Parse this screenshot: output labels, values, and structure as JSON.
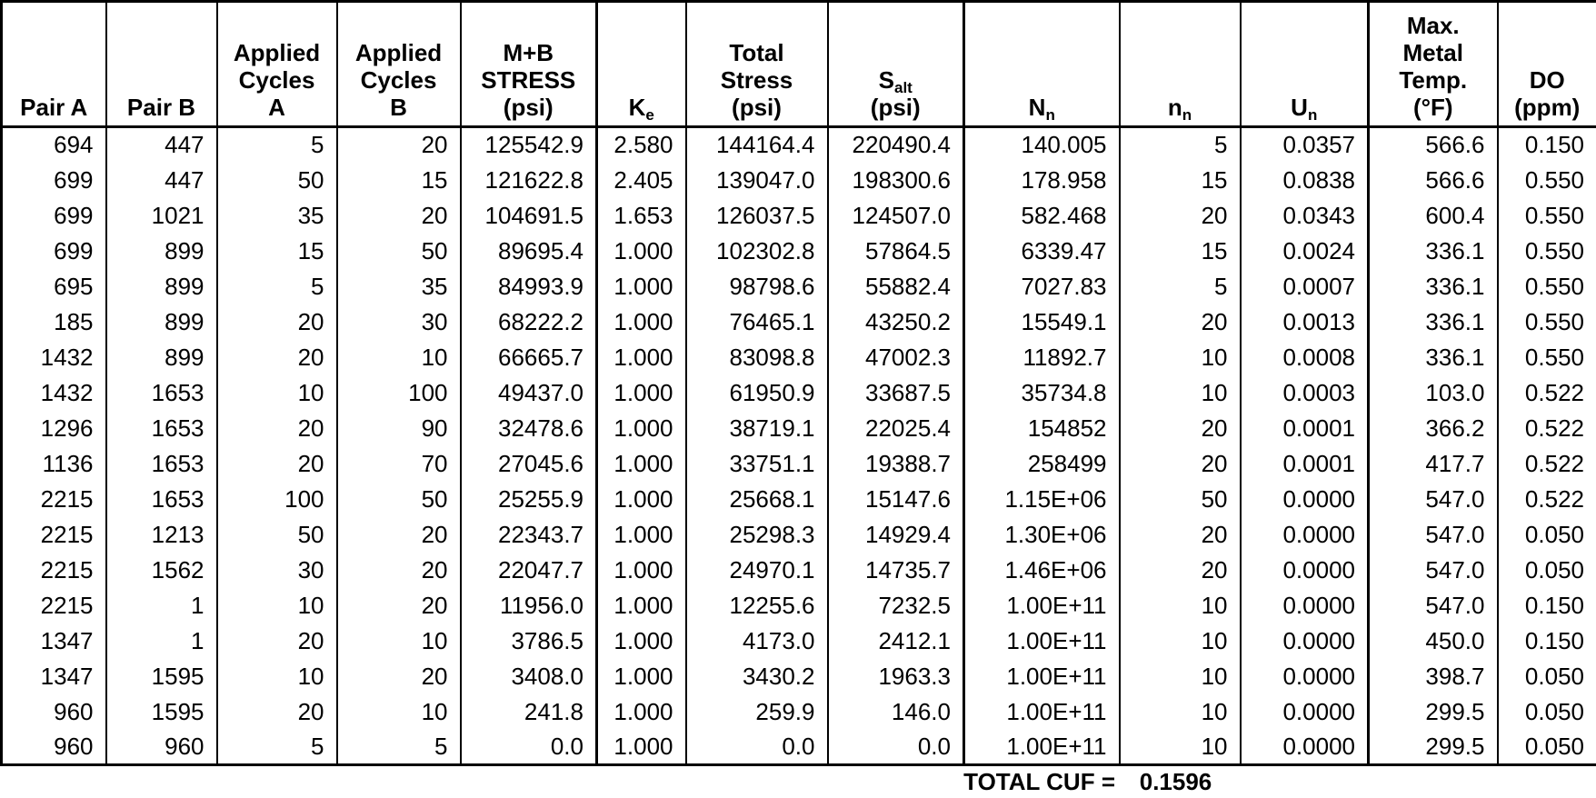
{
  "table": {
    "columns": [
      {
        "id": "pair_a",
        "lines": [
          "Pair A"
        ],
        "thick_right": false
      },
      {
        "id": "pair_b",
        "lines": [
          "Pair B"
        ],
        "thick_right": false
      },
      {
        "id": "applied_cycles_a",
        "lines": [
          "Applied",
          "Cycles",
          "A"
        ],
        "thick_right": false
      },
      {
        "id": "applied_cycles_b",
        "lines": [
          "Applied",
          "Cycles",
          "B"
        ],
        "thick_right": false
      },
      {
        "id": "mb_stress_psi",
        "lines": [
          "M+B",
          "STRESS",
          "(psi)"
        ],
        "thick_right": true
      },
      {
        "id": "ke",
        "lines": [
          {
            "base": "K",
            "sub": "e"
          }
        ],
        "thick_right": false
      },
      {
        "id": "total_stress_psi",
        "lines": [
          "Total",
          "Stress",
          "(psi)"
        ],
        "thick_right": false
      },
      {
        "id": "s_alt_psi",
        "lines": [
          {
            "base": "S",
            "sub": "alt"
          },
          "(psi)"
        ],
        "thick_right": true
      },
      {
        "id": "n_allowable",
        "lines": [
          {
            "base": "N",
            "sub": "n"
          }
        ],
        "thick_right": false
      },
      {
        "id": "n_applied",
        "lines": [
          {
            "base": "n",
            "sub": "n"
          }
        ],
        "thick_right": false
      },
      {
        "id": "u_n",
        "lines": [
          {
            "base": "U",
            "sub": "n"
          }
        ],
        "thick_right": true
      },
      {
        "id": "max_metal_temp_f",
        "lines": [
          "Max.",
          "Metal",
          "Temp.",
          "(°F)"
        ],
        "thick_right": false
      },
      {
        "id": "do_ppm",
        "lines": [
          "DO",
          "(ppm)"
        ],
        "thick_right": false
      }
    ],
    "rows": [
      [
        "694",
        "447",
        "5",
        "20",
        "125542.9",
        "2.580",
        "144164.4",
        "220490.4",
        "140.005",
        "5",
        "0.0357",
        "566.6",
        "0.150"
      ],
      [
        "699",
        "447",
        "50",
        "15",
        "121622.8",
        "2.405",
        "139047.0",
        "198300.6",
        "178.958",
        "15",
        "0.0838",
        "566.6",
        "0.550"
      ],
      [
        "699",
        "1021",
        "35",
        "20",
        "104691.5",
        "1.653",
        "126037.5",
        "124507.0",
        "582.468",
        "20",
        "0.0343",
        "600.4",
        "0.550"
      ],
      [
        "699",
        "899",
        "15",
        "50",
        "89695.4",
        "1.000",
        "102302.8",
        "57864.5",
        "6339.47",
        "15",
        "0.0024",
        "336.1",
        "0.550"
      ],
      [
        "695",
        "899",
        "5",
        "35",
        "84993.9",
        "1.000",
        "98798.6",
        "55882.4",
        "7027.83",
        "5",
        "0.0007",
        "336.1",
        "0.550"
      ],
      [
        "185",
        "899",
        "20",
        "30",
        "68222.2",
        "1.000",
        "76465.1",
        "43250.2",
        "15549.1",
        "20",
        "0.0013",
        "336.1",
        "0.550"
      ],
      [
        "1432",
        "899",
        "20",
        "10",
        "66665.7",
        "1.000",
        "83098.8",
        "47002.3",
        "11892.7",
        "10",
        "0.0008",
        "336.1",
        "0.550"
      ],
      [
        "1432",
        "1653",
        "10",
        "100",
        "49437.0",
        "1.000",
        "61950.9",
        "33687.5",
        "35734.8",
        "10",
        "0.0003",
        "103.0",
        "0.522"
      ],
      [
        "1296",
        "1653",
        "20",
        "90",
        "32478.6",
        "1.000",
        "38719.1",
        "22025.4",
        "154852",
        "20",
        "0.0001",
        "366.2",
        "0.522"
      ],
      [
        "1136",
        "1653",
        "20",
        "70",
        "27045.6",
        "1.000",
        "33751.1",
        "19388.7",
        "258499",
        "20",
        "0.0001",
        "417.7",
        "0.522"
      ],
      [
        "2215",
        "1653",
        "100",
        "50",
        "25255.9",
        "1.000",
        "25668.1",
        "15147.6",
        "1.15E+06",
        "50",
        "0.0000",
        "547.0",
        "0.522"
      ],
      [
        "2215",
        "1213",
        "50",
        "20",
        "22343.7",
        "1.000",
        "25298.3",
        "14929.4",
        "1.30E+06",
        "20",
        "0.0000",
        "547.0",
        "0.050"
      ],
      [
        "2215",
        "1562",
        "30",
        "20",
        "22047.7",
        "1.000",
        "24970.1",
        "14735.7",
        "1.46E+06",
        "20",
        "0.0000",
        "547.0",
        "0.050"
      ],
      [
        "2215",
        "1",
        "10",
        "20",
        "11956.0",
        "1.000",
        "12255.6",
        "7232.5",
        "1.00E+11",
        "10",
        "0.0000",
        "547.0",
        "0.150"
      ],
      [
        "1347",
        "1",
        "20",
        "10",
        "3786.5",
        "1.000",
        "4173.0",
        "2412.1",
        "1.00E+11",
        "10",
        "0.0000",
        "450.0",
        "0.150"
      ],
      [
        "1347",
        "1595",
        "10",
        "20",
        "3408.0",
        "1.000",
        "3430.2",
        "1963.3",
        "1.00E+11",
        "10",
        "0.0000",
        "398.7",
        "0.050"
      ],
      [
        "960",
        "1595",
        "20",
        "10",
        "241.8",
        "1.000",
        "259.9",
        "146.0",
        "1.00E+11",
        "10",
        "0.0000",
        "299.5",
        "0.050"
      ],
      [
        "960",
        "960",
        "5",
        "5",
        "0.0",
        "1.000",
        "0.0",
        "0.0",
        "1.00E+11",
        "10",
        "0.0000",
        "299.5",
        "0.050"
      ]
    ],
    "footer": {
      "label": "TOTAL CUF =",
      "value": "0.1596"
    }
  }
}
